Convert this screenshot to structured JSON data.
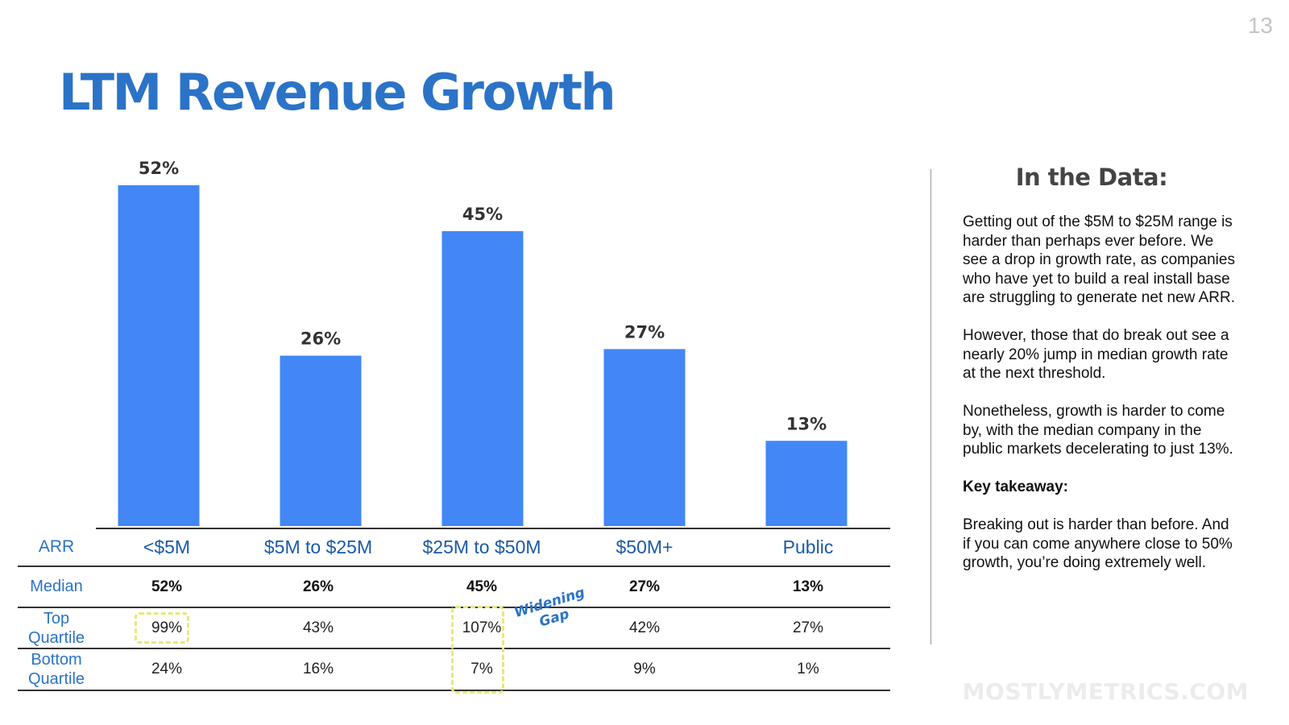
{
  "page_number": "13",
  "title": "LTM Revenue Growth",
  "chart_data": {
    "type": "bar",
    "categories": [
      "<$5M",
      "$5M to $25M",
      "$25M to $50M",
      "$50M+",
      "Public"
    ],
    "values": [
      52,
      26,
      45,
      27,
      13
    ],
    "value_labels": [
      "52%",
      "26%",
      "45%",
      "27%",
      "13%"
    ],
    "ylim": [
      0,
      52
    ],
    "bar_color": "#4287f5",
    "grid": false,
    "legend": "none"
  },
  "table": {
    "header_label": "ARR",
    "rows": [
      {
        "label": "Median",
        "values": [
          "52%",
          "26%",
          "45%",
          "27%",
          "13%"
        ]
      },
      {
        "label": "Top Quartile",
        "values": [
          "99%",
          "43%",
          "107%",
          "42%",
          "27%"
        ]
      },
      {
        "label": "Bottom Quartile",
        "values": [
          "24%",
          "16%",
          "7%",
          "9%",
          "1%"
        ]
      }
    ]
  },
  "annotation": {
    "line1": "Widening",
    "line2": "Gap"
  },
  "sidebar": {
    "title": "In the Data:",
    "paragraphs": [
      "Getting out of the $5M to $25M range is harder than perhaps ever before. We see a drop in growth rate, as companies who have yet to build a real install base are struggling to generate net new ARR.",
      "However, those that do break out see a nearly 20% jump in median growth rate at the next threshold.",
      "Nonetheless, growth is harder to come by, with the median company in the public markets decelerating to just 13%."
    ],
    "key_takeaway_label": "Key takeaway:",
    "key_takeaway_text": "Breaking out is harder than before. And if you can come anywhere close to 50% growth, you’re doing extremely well."
  },
  "watermark": "MOSTLYMETRICS.COM",
  "accent_color": "#2b73c7"
}
